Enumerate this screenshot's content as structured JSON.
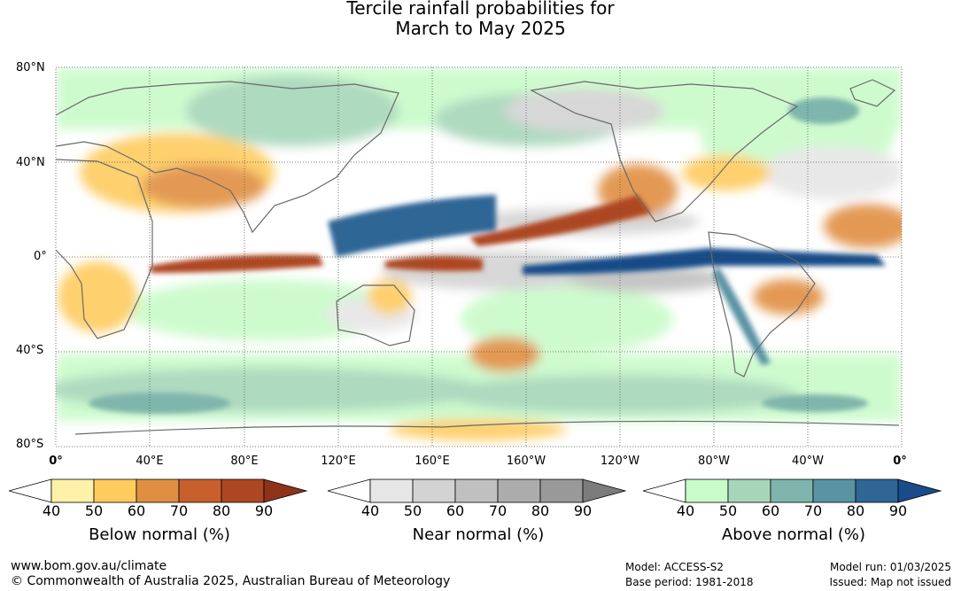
{
  "title": {
    "line1": "Tercile rainfall probabilities for",
    "line2": "March to May 2025"
  },
  "map": {
    "lat_labels": [
      "80°N",
      "40°N",
      "0°",
      "40°S",
      "80°S"
    ],
    "lon_labels": [
      "0°",
      "40°E",
      "80°E",
      "120°E",
      "160°E",
      "160°W",
      "120°W",
      "80°W",
      "40°W",
      "0°"
    ]
  },
  "colorbars": [
    {
      "name": "below",
      "title": "Below normal (%)",
      "ticks": [
        "40",
        "50",
        "60",
        "70",
        "80",
        "90"
      ],
      "colors": [
        "#fff1a8",
        "#fecb5e",
        "#e08f42",
        "#c8602e",
        "#ad4721",
        "#8e321a"
      ]
    },
    {
      "name": "near",
      "title": "Near normal (%)",
      "ticks": [
        "40",
        "50",
        "60",
        "70",
        "80",
        "90"
      ],
      "colors": [
        "#e6e6e6",
        "#d3d3d3",
        "#c0c0c0",
        "#acacac",
        "#999999",
        "#7c7c7c"
      ]
    },
    {
      "name": "above",
      "title": "Above normal (%)",
      "ticks": [
        "40",
        "50",
        "60",
        "70",
        "80",
        "90"
      ],
      "colors": [
        "#c9fbc9",
        "#a6d6b9",
        "#7fb5ac",
        "#5a93a4",
        "#2e6696",
        "#194c88"
      ]
    }
  ],
  "footer": {
    "url": "www.bom.gov.au/climate",
    "copyright": "© Commonwealth of Australia 2025, Australian Bureau of Meteorology",
    "model": "Model: ACCESS-S2",
    "base_period": "Base period: 1981-2018",
    "model_run": "Model run: 01/03/2025",
    "issued": "Issued: Map not issued"
  }
}
